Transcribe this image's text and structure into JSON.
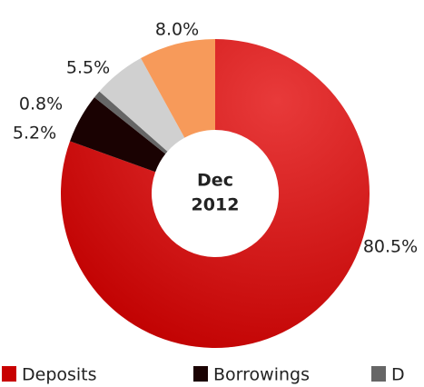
{
  "chart_data": {
    "type": "donut",
    "center_label": [
      "Dec",
      "2012"
    ],
    "series": [
      {
        "name": "Deposits",
        "color": "#c80000",
        "values": [
          80.5
        ],
        "value_labels": [
          "80.5%"
        ]
      },
      {
        "name": "Borrowings",
        "color": "#1a0202",
        "values": [
          5.2
        ],
        "value_labels": [
          "5.2%"
        ]
      },
      {
        "name": "D",
        "color": "#666666",
        "values": [
          0.8
        ],
        "value_labels": [
          "0.8%"
        ]
      },
      {
        "name": null,
        "color": "#d0d0d0",
        "values": [
          5.5
        ],
        "value_labels": [
          "5.5%"
        ]
      },
      {
        "name": null,
        "color": "#f79a5a",
        "values": [
          8.0
        ],
        "value_labels": [
          "8.0%"
        ]
      }
    ]
  }
}
